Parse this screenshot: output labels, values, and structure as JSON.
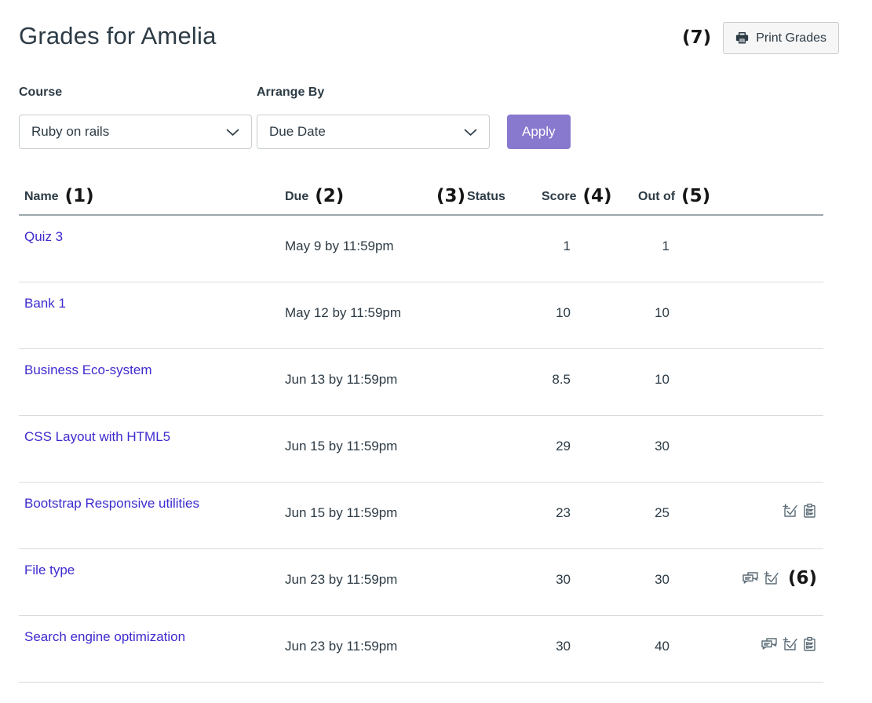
{
  "page": {
    "title": "Grades for Amelia"
  },
  "annotations": {
    "1": "(1)",
    "2": "(2)",
    "3": "(3)",
    "4": "(4)",
    "5": "(5)",
    "6": "(6)",
    "7": "(7)"
  },
  "print_button": {
    "label": "Print Grades",
    "icon": "printer-icon"
  },
  "filters": {
    "course": {
      "label": "Course",
      "value": "Ruby on rails"
    },
    "arrange_by": {
      "label": "Arrange By",
      "value": "Due Date"
    },
    "apply_label": "Apply"
  },
  "table": {
    "headers": {
      "name": "Name",
      "due": "Due",
      "status": "Status",
      "score": "Score",
      "out_of": "Out of"
    },
    "rows": [
      {
        "name": "Quiz 3",
        "due": "May 9 by 11:59pm",
        "status": "",
        "score": "1",
        "out_of": "1",
        "icons": []
      },
      {
        "name": "Bank 1",
        "due": "May 12 by 11:59pm",
        "status": "",
        "score": "10",
        "out_of": "10",
        "icons": []
      },
      {
        "name": "Business Eco-system",
        "due": "Jun 13 by 11:59pm",
        "status": "",
        "score": "8.5",
        "out_of": "10",
        "icons": []
      },
      {
        "name": "CSS Layout with HTML5",
        "due": "Jun 15 by 11:59pm",
        "status": "",
        "score": "29",
        "out_of": "30",
        "icons": []
      },
      {
        "name": "Bootstrap Responsive utilities",
        "due": "Jun 15 by 11:59pm",
        "status": "",
        "score": "23",
        "out_of": "25",
        "icons": [
          "check-plus",
          "rubric"
        ]
      },
      {
        "name": "File type",
        "due": "Jun 23 by 11:59pm",
        "status": "",
        "score": "30",
        "out_of": "30",
        "icons": [
          "discussion",
          "check-plus"
        ],
        "annotation": "(6)"
      },
      {
        "name": "Search engine optimization",
        "due": "Jun 23 by 11:59pm",
        "status": "",
        "score": "30",
        "out_of": "40",
        "icons": [
          "discussion",
          "check-plus",
          "rubric"
        ]
      }
    ]
  },
  "colors": {
    "text": "#2D3B45",
    "link": "#3D2BCE",
    "accent": "#8878CE",
    "border_light": "#D8DCDE",
    "border_dark": "#9EA8AE",
    "input_border": "#C7CDD1",
    "button_bg": "#F6F6F6",
    "icon": "#5B6B76",
    "annotation": "#161616"
  }
}
